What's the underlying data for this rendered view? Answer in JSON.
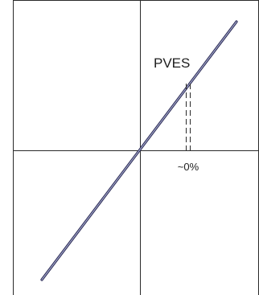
{
  "diagram": {
    "curve_label": "PVES",
    "marker_label": "~0%",
    "colors": {
      "background": "#ffffff",
      "frame": "#2a2a2a",
      "axes": "#2a2a2a",
      "line_outer": "#2b2b55",
      "line_inner": "#a0a4c8",
      "dashes": "#2a2a2a",
      "text": "#1e1e1e"
    }
  }
}
